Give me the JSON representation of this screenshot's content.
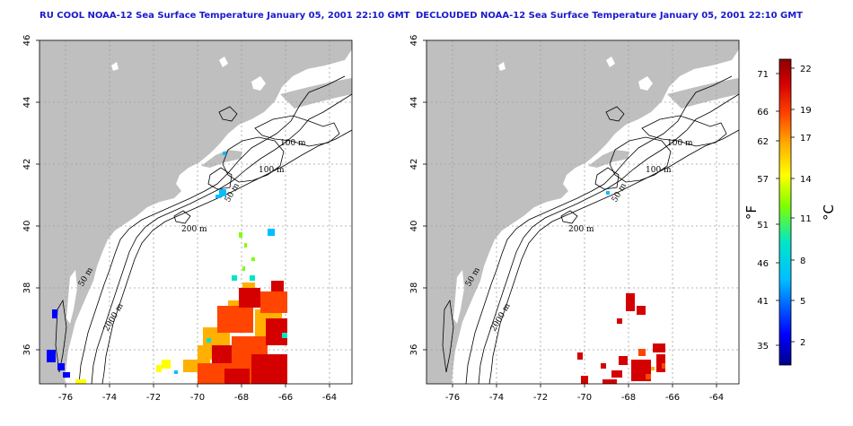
{
  "titles": {
    "left": "RU COOL NOAA-12 Sea Surface Temperature January 05, 2001 22:10 GMT",
    "right": "DECLOUDED NOAA-12 Sea Surface Temperature January 05, 2001 22:10 GMT"
  },
  "map": {
    "lon_ticks": [
      "-76",
      "-74",
      "-72",
      "-70",
      "-68",
      "-66",
      "-64"
    ],
    "lat_ticks": [
      "46",
      "44",
      "42",
      "40",
      "38",
      "36"
    ],
    "lon_range": [
      -77.2,
      -63.0
    ],
    "lat_range": [
      35.0,
      46.0
    ],
    "grid": true,
    "land_color": "#bfbfbf",
    "ocean_color": "#ffffff",
    "isobath_labels_left": [
      "100 m",
      "100 m",
      "50 m",
      "200 m",
      "50 m",
      "2000 m"
    ],
    "isobath_labels_right": [
      "100 m",
      "100 m",
      "50 m",
      "200 m",
      "50 m",
      "2000 m"
    ]
  },
  "colorbar": {
    "fahrenheit_ticks": [
      "71",
      "66",
      "62",
      "57",
      "51",
      "46",
      "41",
      "35"
    ],
    "celsius_ticks": [
      "22",
      "19",
      "17",
      "14",
      "11",
      "8",
      "5",
      "2"
    ],
    "f_label": "°F",
    "c_label": "°C",
    "colors": [
      "#00008b",
      "#0000ff",
      "#00bfff",
      "#00e5c8",
      "#7fff00",
      "#ffff00",
      "#ffb000",
      "#ff4500",
      "#d40000",
      "#8b0000"
    ]
  }
}
